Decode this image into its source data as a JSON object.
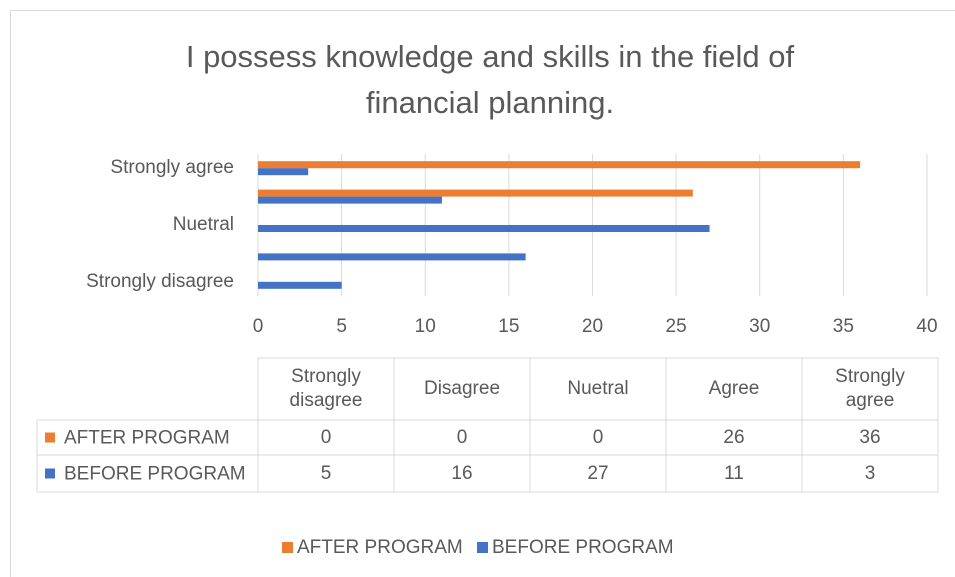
{
  "chart_data": {
    "type": "bar",
    "orientation": "horizontal",
    "title": "I possess knowledge and skills in the field of financial planning.",
    "categories": [
      "Strongly disagree",
      "Disagree",
      "Nuetral",
      "Agree",
      "Strongly agree"
    ],
    "series": [
      {
        "name": "AFTER PROGRAM",
        "color": "#ed7d31",
        "values": [
          0,
          0,
          0,
          26,
          36
        ]
      },
      {
        "name": "BEFORE PROGRAM",
        "color": "#4472c4",
        "values": [
          5,
          16,
          27,
          11,
          3
        ]
      }
    ],
    "xlim": [
      0,
      40
    ],
    "xticks": [
      0,
      5,
      10,
      15,
      20,
      25,
      30,
      35,
      40
    ],
    "grid": true,
    "data_table": true,
    "legend": "bottom"
  }
}
